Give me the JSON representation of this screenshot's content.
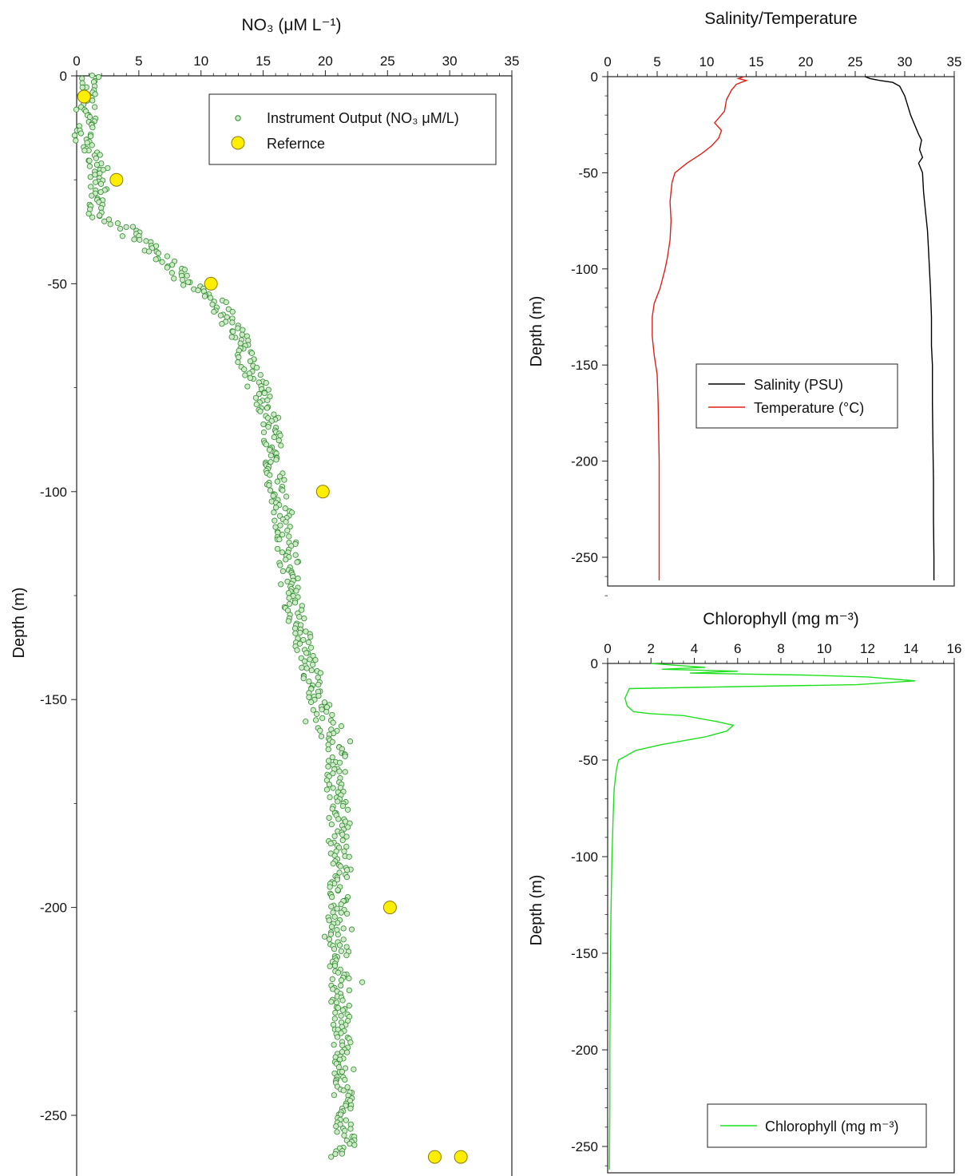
{
  "figure": {
    "panels": {
      "no3": {
        "title": "NO₃ (μM L⁻¹)",
        "ylabel": "Depth (m)",
        "legend": {
          "instrument": "Instrument Output (NO₃ μM/L)",
          "reference": "Refernce"
        }
      },
      "salt": {
        "title": "Salinity/Temperature",
        "ylabel": "Depth (m)",
        "legend": {
          "salinity": "Salinity (PSU)",
          "temperature": "Temperature (°C)"
        }
      },
      "chl": {
        "title": "Chlorophyll (mg m⁻³)",
        "ylabel": "Depth (m)",
        "legend": {
          "chlorophyll": "Chlorophyll (mg m⁻³)"
        }
      }
    }
  },
  "chart_data": [
    {
      "type": "scatter",
      "title": "NO₃ (μM L⁻¹)",
      "ylabel": "Depth (m)",
      "xlim": [
        0,
        35
      ],
      "ylim": [
        -260,
        0
      ],
      "x_ticks": [
        0,
        5,
        10,
        15,
        20,
        25,
        30,
        35
      ],
      "y_ticks": [
        0,
        -50,
        -100,
        -150,
        -200,
        -250
      ],
      "legend_position": "top-right",
      "colors": {
        "instrument": "#2e8b2e",
        "instrument_fill": "#cfe9c9",
        "reference": "#ffee00",
        "reference_edge": "#8a7a00"
      },
      "series": [
        {
          "name": "Instrument Output (NO₃ μM/L)",
          "marker": "open-circle",
          "profile": [
            [
              0,
              1.0
            ],
            [
              -5,
              0.7
            ],
            [
              -10,
              0.8
            ],
            [
              -15,
              0.6
            ],
            [
              -20,
              1.6
            ],
            [
              -25,
              1.9
            ],
            [
              -30,
              1.4
            ],
            [
              -33,
              1.6
            ],
            [
              -36,
              3.5
            ],
            [
              -40,
              5.5
            ],
            [
              -45,
              7.5
            ],
            [
              -50,
              9.0
            ],
            [
              -55,
              11.5
            ],
            [
              -60,
              12.5
            ],
            [
              -65,
              13.4
            ],
            [
              -70,
              13.8
            ],
            [
              -75,
              14.6
            ],
            [
              -80,
              15.3
            ],
            [
              -85,
              15.8
            ],
            [
              -90,
              15.9
            ],
            [
              -95,
              16.0
            ],
            [
              -100,
              16.2
            ],
            [
              -105,
              16.6
            ],
            [
              -110,
              16.8
            ],
            [
              -115,
              16.9
            ],
            [
              -120,
              17.1
            ],
            [
              -125,
              17.3
            ],
            [
              -130,
              17.7
            ],
            [
              -135,
              18.1
            ],
            [
              -140,
              18.6
            ],
            [
              -145,
              19.0
            ],
            [
              -150,
              19.5
            ],
            [
              -155,
              20.0
            ],
            [
              -160,
              20.6
            ],
            [
              -165,
              20.9
            ],
            [
              -170,
              20.8
            ],
            [
              -175,
              21.0
            ],
            [
              -180,
              21.2
            ],
            [
              -185,
              21.0
            ],
            [
              -190,
              21.3
            ],
            [
              -195,
              21.1
            ],
            [
              -200,
              21.0
            ],
            [
              -205,
              21.0
            ],
            [
              -210,
              21.2
            ],
            [
              -215,
              21.1
            ],
            [
              -220,
              21.3
            ],
            [
              -225,
              21.2
            ],
            [
              -230,
              21.3
            ],
            [
              -235,
              21.4
            ],
            [
              -240,
              21.5
            ],
            [
              -245,
              21.5
            ],
            [
              -250,
              21.6
            ],
            [
              -255,
              21.6
            ],
            [
              -260,
              21.5
            ]
          ]
        },
        {
          "name": "Refernce",
          "marker": "filled-circle",
          "points": [
            {
              "x": 0.6,
              "y": -5
            },
            {
              "x": 3.2,
              "y": -25
            },
            {
              "x": 10.8,
              "y": -50
            },
            {
              "x": 19.8,
              "y": -100
            },
            {
              "x": 25.2,
              "y": -200
            },
            {
              "x": 28.8,
              "y": -260
            },
            {
              "x": 30.9,
              "y": -260
            }
          ]
        }
      ]
    },
    {
      "type": "line",
      "title": "Salinity/Temperature",
      "ylabel": "Depth (m)",
      "xlim": [
        0,
        35
      ],
      "ylim": [
        -262,
        0
      ],
      "x_ticks": [
        0,
        5,
        10,
        15,
        20,
        25,
        30,
        35
      ],
      "y_ticks": [
        0,
        -50,
        -100,
        -150,
        -200,
        -250
      ],
      "legend_position": "center-right",
      "series": [
        {
          "name": "Salinity (PSU)",
          "color": "#000000",
          "points": [
            [
              26.0,
              0
            ],
            [
              26.5,
              -1
            ],
            [
              27.5,
              -2
            ],
            [
              28.8,
              -3
            ],
            [
              29.5,
              -5
            ],
            [
              30.0,
              -10
            ],
            [
              30.3,
              -15
            ],
            [
              30.6,
              -20
            ],
            [
              31.0,
              -25
            ],
            [
              31.4,
              -30
            ],
            [
              31.7,
              -33
            ],
            [
              31.5,
              -38
            ],
            [
              31.8,
              -42
            ],
            [
              31.4,
              -45
            ],
            [
              31.8,
              -50
            ],
            [
              31.9,
              -60
            ],
            [
              32.1,
              -70
            ],
            [
              32.3,
              -80
            ],
            [
              32.4,
              -90
            ],
            [
              32.5,
              -100
            ],
            [
              32.6,
              -110
            ],
            [
              32.7,
              -125
            ],
            [
              32.7,
              -140
            ],
            [
              32.8,
              -150
            ],
            [
              32.8,
              -170
            ],
            [
              32.85,
              -190
            ],
            [
              32.9,
              -210
            ],
            [
              32.9,
              -230
            ],
            [
              32.95,
              -250
            ],
            [
              32.95,
              -262
            ]
          ]
        },
        {
          "name": "Temperature (°C)",
          "color": "#e0201a",
          "points": [
            [
              13.8,
              0
            ],
            [
              13.2,
              -1
            ],
            [
              14.0,
              -2
            ],
            [
              13.0,
              -4
            ],
            [
              12.5,
              -7
            ],
            [
              12.0,
              -12
            ],
            [
              11.8,
              -18
            ],
            [
              10.8,
              -24
            ],
            [
              11.5,
              -28
            ],
            [
              11.2,
              -32
            ],
            [
              10.5,
              -36
            ],
            [
              9.5,
              -40
            ],
            [
              8.0,
              -45
            ],
            [
              6.8,
              -50
            ],
            [
              6.5,
              -55
            ],
            [
              6.3,
              -65
            ],
            [
              6.4,
              -75
            ],
            [
              6.3,
              -85
            ],
            [
              6.0,
              -95
            ],
            [
              5.8,
              -100
            ],
            [
              5.3,
              -110
            ],
            [
              4.7,
              -118
            ],
            [
              4.5,
              -125
            ],
            [
              4.5,
              -135
            ],
            [
              4.7,
              -145
            ],
            [
              5.0,
              -155
            ],
            [
              5.1,
              -170
            ],
            [
              5.2,
              -200
            ],
            [
              5.2,
              -230
            ],
            [
              5.2,
              -262
            ]
          ]
        }
      ]
    },
    {
      "type": "line",
      "title": "Chlorophyll (mg m⁻³)",
      "ylabel": "Depth (m)",
      "xlim": [
        0,
        16
      ],
      "ylim": [
        -262,
        0
      ],
      "x_ticks": [
        0,
        2,
        4,
        6,
        8,
        10,
        12,
        14,
        16
      ],
      "y_ticks": [
        0,
        -50,
        -100,
        -150,
        -200,
        -250
      ],
      "legend_position": "bottom-right",
      "series": [
        {
          "name": "Chlorophyll (mg m⁻³)",
          "color": "#1fe01f",
          "points": [
            [
              2.0,
              0
            ],
            [
              3.2,
              -1
            ],
            [
              4.5,
              -2
            ],
            [
              2.5,
              -3
            ],
            [
              6.0,
              -4
            ],
            [
              3.8,
              -5
            ],
            [
              9.0,
              -6
            ],
            [
              12.0,
              -7
            ],
            [
              14.2,
              -9
            ],
            [
              11.5,
              -11
            ],
            [
              6.0,
              -12
            ],
            [
              1.0,
              -13
            ],
            [
              0.8,
              -18
            ],
            [
              0.9,
              -22
            ],
            [
              1.2,
              -25
            ],
            [
              2.0,
              -26
            ],
            [
              3.5,
              -27
            ],
            [
              5.0,
              -30
            ],
            [
              5.8,
              -32
            ],
            [
              5.5,
              -35
            ],
            [
              4.5,
              -38
            ],
            [
              3.5,
              -40
            ],
            [
              2.5,
              -42
            ],
            [
              1.3,
              -45
            ],
            [
              0.5,
              -50
            ],
            [
              0.4,
              -55
            ],
            [
              0.3,
              -65
            ],
            [
              0.25,
              -80
            ],
            [
              0.2,
              -100
            ],
            [
              0.15,
              -130
            ],
            [
              0.12,
              -160
            ],
            [
              0.1,
              -200
            ],
            [
              0.1,
              -230
            ],
            [
              0.08,
              -262
            ]
          ]
        }
      ]
    }
  ]
}
